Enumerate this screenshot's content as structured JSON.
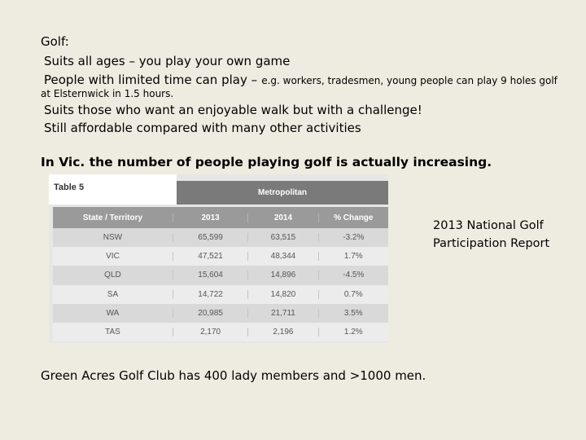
{
  "text": {
    "heading": "Golf:",
    "bullet1": "Suits all ages – you play your own game",
    "bullet2_main": "People with limited time can play –",
    "bullet2_small": "e.g. workers, tradesmen, young people can play 9 holes golf",
    "bullet2_cont": "at Elsternwick in 1.5 hours.",
    "bullet3": "Suits those who want an enjoyable walk but with a challenge!",
    "bullet4": "Still affordable compared with many other activities",
    "statement": "In Vic. the number of people playing golf is actually increasing.",
    "side_note": "2013 National Golf Participation Report",
    "footer": "Green Acres Golf Club has 400 lady members and >1000 men."
  },
  "table": {
    "caption": "Table 5",
    "group_header": "Metropolitan",
    "columns": [
      "State / Territory",
      "2013",
      "2014",
      "% Change"
    ],
    "rows": [
      [
        "NSW",
        "65,599",
        "63,515",
        "-3.2%"
      ],
      [
        "VIC",
        "47,521",
        "48,344",
        "1.7%"
      ],
      [
        "QLD",
        "15,604",
        "14,896",
        "-4.5%"
      ],
      [
        "SA",
        "14,722",
        "14,820",
        "0.7%"
      ],
      [
        "WA",
        "20,985",
        "21,711",
        "3.5%"
      ],
      [
        "TAS",
        "2,170",
        "2,196",
        "1.2%"
      ]
    ]
  },
  "colors": {
    "background": "#eeece1",
    "table_header": "#9a9a9a",
    "group_header": "#7a7a7a"
  }
}
